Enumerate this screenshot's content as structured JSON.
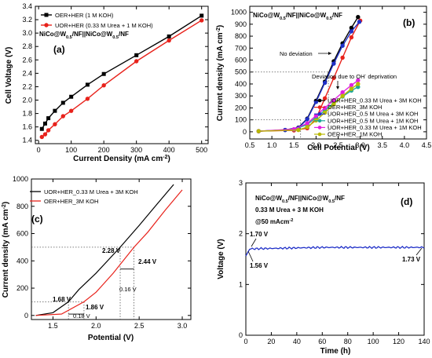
{
  "chart_data": [
    {
      "panel": "(a)",
      "type": "line",
      "title": "NiCo@W0.5/NF||NiCo@W0.5/NF",
      "xlabel": "Current Density (mA cm-2)",
      "ylabel": "Cell Voltage (V)",
      "xlim": [
        -10,
        520
      ],
      "ylim": [
        1.35,
        3.4
      ],
      "xticks": [
        0,
        100,
        200,
        300,
        400,
        500
      ],
      "yticks": [
        1.4,
        1.6,
        1.8,
        2.0,
        2.2,
        2.4,
        2.6,
        2.8,
        3.0,
        3.2,
        3.4
      ],
      "legend_position": "top-left",
      "series": [
        {
          "name": "OER+HER (1 M KOH)",
          "color": "#000000",
          "x": [
            10,
            20,
            30,
            50,
            75,
            100,
            150,
            200,
            300,
            400,
            500
          ],
          "y": [
            1.57,
            1.65,
            1.73,
            1.84,
            1.96,
            2.05,
            2.23,
            2.39,
            2.67,
            2.95,
            3.26
          ]
        },
        {
          "name": "UOR+HER (0.33 M Urea + 1 M KOH)",
          "color": "#e8221b",
          "x": [
            10,
            20,
            30,
            50,
            75,
            100,
            150,
            200,
            300,
            400,
            500
          ],
          "y": [
            1.45,
            1.49,
            1.55,
            1.64,
            1.76,
            1.84,
            2.02,
            2.22,
            2.58,
            2.89,
            3.19
          ]
        }
      ]
    },
    {
      "panel": "(b)",
      "type": "line",
      "title": "NiCo@W0.5/NF||NiCo@W0.5/NF",
      "xlabel": "Cell Potential (V)",
      "ylabel": "Current density (mA cm-2)",
      "xlim": [
        0.5,
        4.5
      ],
      "ylim": [
        -60,
        1050
      ],
      "xticks": [
        0.5,
        1.0,
        1.5,
        2.0,
        2.5,
        3.0,
        3.5,
        4.0,
        4.5
      ],
      "yticks": [
        0,
        100,
        200,
        300,
        400,
        500,
        600,
        700,
        800,
        900,
        1000
      ],
      "legend_position": "bottom-right",
      "annotations": [
        "No deviation",
        "Deviation due to OH- deprivation"
      ],
      "series": [
        {
          "name": "UOR+HER_0.33 M Urea + 3M KOH",
          "color": "#000000",
          "x": [
            0.7,
            1.3,
            1.6,
            1.8,
            2.0,
            2.2,
            2.4,
            2.6,
            2.8,
            2.95
          ],
          "y": [
            5,
            15,
            35,
            110,
            260,
            420,
            590,
            740,
            870,
            960
          ]
        },
        {
          "name": "OER+HER_3M KOH",
          "color": "#e8221b",
          "x": [
            0.7,
            1.5,
            1.8,
            2.0,
            2.2,
            2.4,
            2.6,
            2.8,
            3.0
          ],
          "y": [
            5,
            12,
            30,
            110,
            280,
            450,
            620,
            790,
            930
          ]
        },
        {
          "name": "UOR+HER_0.5 M Urea + 3M KOH",
          "color": "#2030c8",
          "x": [
            0.7,
            1.3,
            1.6,
            1.8,
            2.0,
            2.2,
            2.4,
            2.6,
            2.8,
            2.98
          ],
          "y": [
            5,
            15,
            32,
            105,
            250,
            410,
            570,
            720,
            840,
            920
          ]
        },
        {
          "name": "UOR+HER_0.5 M Urea + 1M KOH",
          "color": "#1fa89a",
          "x": [
            0.7,
            1.5,
            1.8,
            2.0,
            2.2,
            2.4,
            2.6,
            2.8,
            2.95
          ],
          "y": [
            5,
            20,
            60,
            120,
            180,
            240,
            295,
            345,
            375
          ]
        },
        {
          "name": "UOR+HER_0.33 M Urea + 1M KOH",
          "color": "#e020e0",
          "x": [
            0.7,
            1.5,
            1.8,
            2.0,
            2.2,
            2.4,
            2.6,
            2.8,
            2.95
          ],
          "y": [
            5,
            22,
            70,
            135,
            200,
            265,
            330,
            390,
            430
          ]
        },
        {
          "name": "OER+HER_1M KOH",
          "color": "#b8b800",
          "x": [
            0.7,
            1.6,
            1.8,
            2.0,
            2.2,
            2.4,
            2.6,
            2.8,
            2.95
          ],
          "y": [
            5,
            15,
            40,
            95,
            160,
            230,
            300,
            360,
            400
          ]
        }
      ]
    },
    {
      "panel": "(c)",
      "type": "line",
      "xlabel": "Potential (V)",
      "ylabel": "Current density (mA cm-2)",
      "xlim": [
        1.25,
        3.1
      ],
      "ylim": [
        -30,
        1000
      ],
      "xticks": [
        1.5,
        2.0,
        2.5,
        3.0
      ],
      "yticks": [
        0,
        200,
        400,
        600,
        800,
        1000
      ],
      "legend_position": "top-left",
      "annotations": [
        "1.68 V",
        "1.86 V",
        "0.18 V",
        "2.28 V",
        "2.44 V",
        "0.16 V"
      ],
      "series": [
        {
          "name": "UOR+HER_0.33 M Urea +  3M KOH",
          "color": "#000000",
          "x": [
            1.3,
            1.5,
            1.68,
            1.8,
            2.0,
            2.28,
            2.5,
            2.7,
            2.9
          ],
          "y": [
            0,
            20,
            100,
            190,
            310,
            500,
            660,
            810,
            960
          ]
        },
        {
          "name": "OER+HER_3M KOH",
          "color": "#e8221b",
          "x": [
            1.3,
            1.6,
            1.86,
            2.0,
            2.2,
            2.44,
            2.6,
            2.8,
            3.0
          ],
          "y": [
            0,
            10,
            100,
            170,
            310,
            500,
            610,
            770,
            920
          ]
        }
      ]
    },
    {
      "panel": "(d)",
      "type": "line",
      "title": "NiCo@W0.5/NF||NiCo@W0.5/NF",
      "subtitle": "0.33 M Urea + 3 M KOH",
      "note": "@50 mAcm-2",
      "xlabel": "Time (h)",
      "ylabel": "Voltage (V)",
      "xlim": [
        0,
        140
      ],
      "ylim": [
        0,
        3
      ],
      "xticks": [
        0,
        20,
        40,
        60,
        80,
        100,
        120,
        140
      ],
      "yticks": [
        0,
        1,
        2,
        3
      ],
      "annotations": [
        "1.70 V",
        "1.56 V",
        "1.73 V"
      ],
      "series": [
        {
          "name": "",
          "color": "#2030c8",
          "x": [
            0,
            0.5,
            2,
            5,
            10,
            20,
            40,
            60,
            80,
            100,
            120,
            140
          ],
          "y": [
            1.56,
            1.62,
            1.7,
            1.71,
            1.72,
            1.72,
            1.73,
            1.73,
            1.74,
            1.73,
            1.73,
            1.73
          ]
        }
      ]
    }
  ]
}
